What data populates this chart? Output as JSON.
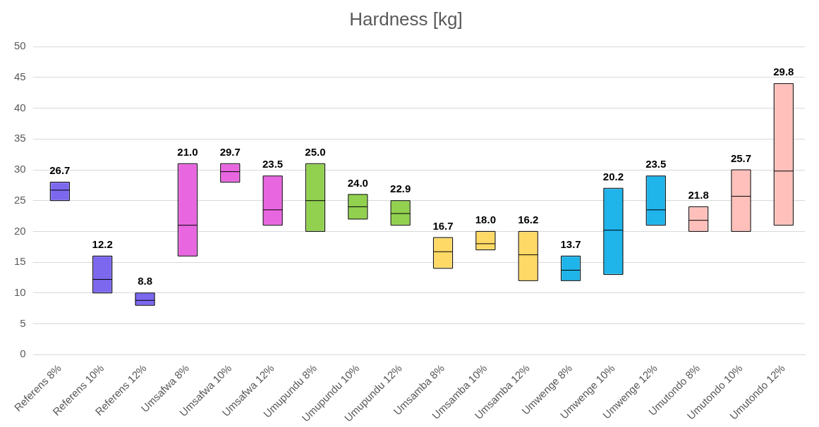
{
  "chart_data": {
    "type": "box",
    "title": "Hardness [kg]",
    "categories": [
      "Referens 8%",
      "Referens 10%",
      "Referens 12%",
      "Umsafwa 8%",
      "Umsafwa 10%",
      "Umsafwa 12%",
      "Umupundu 8%",
      "Umupundu 10%",
      "Umupundu 12%",
      "Umsamba 8%",
      "Umsamba 10%",
      "Umsamba 12%",
      "Umwenge 8%",
      "Umwenge 10%",
      "Umwenge 12%",
      "Umutondo 8%",
      "Umutondo 10%",
      "Umutondo 12%"
    ],
    "boxes": [
      {
        "low": 25,
        "q1": 25,
        "median": 26.7,
        "q3": 28,
        "high": 28
      },
      {
        "low": 10,
        "q1": 10,
        "median": 12.2,
        "q3": 16,
        "high": 16
      },
      {
        "low": 8,
        "q1": 8,
        "median": 8.8,
        "q3": 10,
        "high": 10
      },
      {
        "low": 16,
        "q1": 16,
        "median": 21.0,
        "q3": 31,
        "high": 31
      },
      {
        "low": 28,
        "q1": 28,
        "median": 29.7,
        "q3": 31,
        "high": 31
      },
      {
        "low": 21,
        "q1": 21,
        "median": 23.5,
        "q3": 29,
        "high": 29
      },
      {
        "low": 20,
        "q1": 20,
        "median": 25.0,
        "q3": 31,
        "high": 31
      },
      {
        "low": 22,
        "q1": 22,
        "median": 24.0,
        "q3": 26,
        "high": 26
      },
      {
        "low": 21,
        "q1": 21,
        "median": 22.9,
        "q3": 25,
        "high": 25
      },
      {
        "low": 14,
        "q1": 14,
        "median": 16.7,
        "q3": 19,
        "high": 19
      },
      {
        "low": 17,
        "q1": 17,
        "median": 18.0,
        "q3": 20,
        "high": 20
      },
      {
        "low": 12,
        "q1": 12,
        "median": 16.2,
        "q3": 20,
        "high": 20
      },
      {
        "low": 12,
        "q1": 12,
        "median": 13.7,
        "q3": 16,
        "high": 16
      },
      {
        "low": 13,
        "q1": 13,
        "median": 20.2,
        "q3": 27,
        "high": 27
      },
      {
        "low": 21,
        "q1": 21,
        "median": 23.5,
        "q3": 29,
        "high": 29
      },
      {
        "low": 20,
        "q1": 20,
        "median": 21.8,
        "q3": 24,
        "high": 24
      },
      {
        "low": 20,
        "q1": 20,
        "median": 25.7,
        "q3": 30,
        "high": 30
      },
      {
        "low": 21,
        "q1": 21,
        "median": 29.8,
        "q3": 44,
        "high": 44
      }
    ],
    "colors": [
      "#7b68ee",
      "#7b68ee",
      "#7b68ee",
      "#e866e0",
      "#e866e0",
      "#e866e0",
      "#92d050",
      "#92d050",
      "#92d050",
      "#ffd966",
      "#ffd966",
      "#ffd966",
      "#1fb4ea",
      "#1fb4ea",
      "#1fb4ea",
      "#ffc0bb",
      "#ffc0bb",
      "#ffc0bb"
    ],
    "value_labels": [
      "26.7",
      "12.2",
      "8.8",
      "21.0",
      "29.7",
      "23.5",
      "25.0",
      "24.0",
      "22.9",
      "16.7",
      "18.0",
      "16.2",
      "13.7",
      "20.2",
      "23.5",
      "21.8",
      "25.7",
      "29.8"
    ],
    "ylim": [
      0,
      50
    ],
    "yticks": [
      0,
      5,
      10,
      15,
      20,
      25,
      30,
      35,
      40,
      45,
      50
    ],
    "grid": "y"
  }
}
